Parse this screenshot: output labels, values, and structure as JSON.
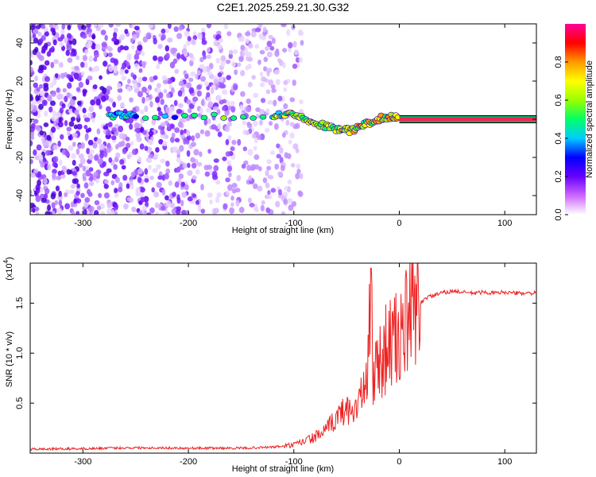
{
  "chart_data": [
    {
      "type": "heatmap",
      "title": "C2E1.2025.259.21.30.G32",
      "xlabel": "Height of straight line (km)",
      "ylabel": "Frequency (Hz)",
      "xlim": [
        -350,
        130
      ],
      "ylim": [
        -50,
        50
      ],
      "xticks": [
        -300,
        -200,
        -100,
        0,
        100
      ],
      "xtick_labels": [
        "-300",
        "-200",
        "-100",
        "0",
        "100"
      ],
      "yticks": [
        -40,
        -20,
        0,
        20,
        40
      ],
      "ytick_labels": [
        "-40",
        "-20",
        "0",
        "20",
        "40"
      ],
      "colorbar": {
        "label": "Normalized spectral amplitude",
        "range": [
          0,
          1
        ],
        "ticks": [
          0.0,
          0.2,
          0.4,
          0.6,
          0.8
        ],
        "tick_labels": [
          "0.0",
          "0.2",
          "0.4",
          "0.6",
          "0.8"
        ],
        "colors": [
          "#ffffff",
          "#cc66ff",
          "#6600ff",
          "#0000ff",
          "#00ccff",
          "#00ff66",
          "#99ff00",
          "#ffff00",
          "#ff9900",
          "#ff0000",
          "#ff0099"
        ]
      },
      "features": {
        "signal_track": [
          {
            "x": -275,
            "y": 2
          },
          {
            "x": -250,
            "y": 2
          },
          {
            "x": -120,
            "y": 2
          },
          {
            "x": -100,
            "y": 3
          },
          {
            "x": -80,
            "y": -2
          },
          {
            "x": -60,
            "y": -5
          },
          {
            "x": -45,
            "y": -6
          },
          {
            "x": -30,
            "y": -2
          },
          {
            "x": -15,
            "y": 1
          },
          {
            "x": 0,
            "y": 1
          },
          {
            "x": 130,
            "y": 0
          }
        ],
        "noise_region_xmax": -100
      }
    },
    {
      "type": "line",
      "xlabel": "Height of straight line (km)",
      "ylabel": "SNR (10 * v/v)",
      "y_multiplier": "(x10^4)",
      "y_multiplier_base": "(x10",
      "y_multiplier_exp": "4",
      "y_multiplier_close": ")",
      "xlim": [
        -350,
        130
      ],
      "ylim": [
        0,
        1.9
      ],
      "xticks": [
        -300,
        -200,
        -100,
        0,
        100
      ],
      "xtick_labels": [
        "-300",
        "-200",
        "-100",
        "0",
        "100"
      ],
      "yticks": [
        0.5,
        1.0,
        1.5
      ],
      "ytick_labels": [
        "0.5",
        "1.0",
        "1.5"
      ],
      "series": [
        {
          "name": "SNR",
          "color": "#ee2222",
          "x": [
            -350,
            -300,
            -250,
            -200,
            -150,
            -120,
            -100,
            -90,
            -80,
            -70,
            -60,
            -50,
            -45,
            -40,
            -35,
            -30,
            -27,
            -25,
            -20,
            -15,
            -10,
            -5,
            0,
            5,
            10,
            15,
            20,
            25,
            30,
            40,
            50,
            60,
            70,
            80,
            90,
            100,
            110,
            120,
            130
          ],
          "values": [
            0.04,
            0.045,
            0.055,
            0.05,
            0.05,
            0.06,
            0.08,
            0.12,
            0.16,
            0.22,
            0.35,
            0.45,
            0.4,
            0.5,
            0.6,
            0.7,
            1.85,
            0.8,
            0.9,
            1.0,
            1.1,
            1.1,
            1.15,
            1.25,
            1.35,
            1.45,
            1.5,
            1.55,
            1.57,
            1.6,
            1.62,
            1.61,
            1.6,
            1.61,
            1.6,
            1.61,
            1.6,
            1.6,
            1.6
          ]
        }
      ]
    }
  ]
}
